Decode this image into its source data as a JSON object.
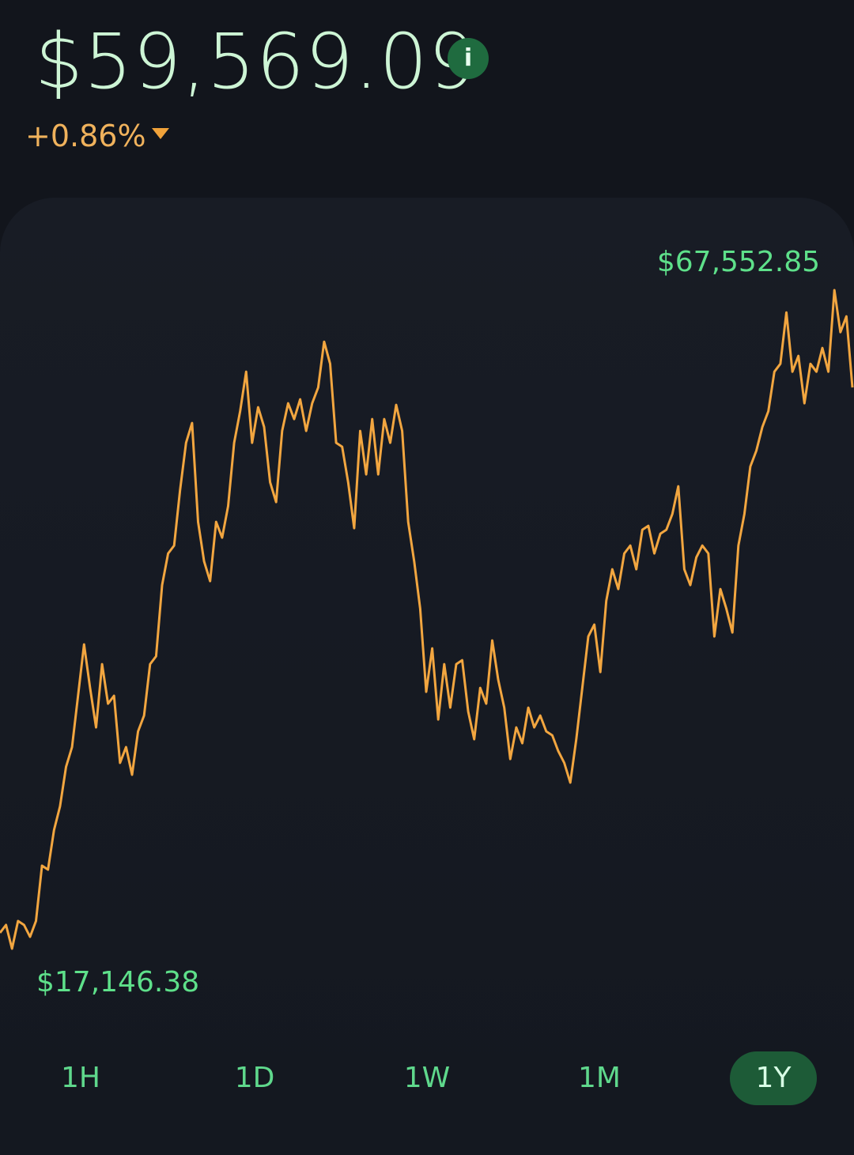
{
  "header": {
    "price": "$59,569.09",
    "change": "+0.86%"
  },
  "chart_data": {
    "type": "line",
    "color": "#f2a640",
    "values": [
      18356,
      18961,
      17146.38,
      19264,
      18961,
      18054,
      19264,
      23499,
      23196,
      26221,
      28036,
      31061,
      32574,
      36506,
      40439,
      37111,
      34086,
      38926,
      35901,
      36506,
      31364,
      32574,
      30456,
      33784,
      34994,
      38926,
      39531,
      44976,
      47396,
      48001,
      52236,
      55866,
      57379,
      49816,
      46791,
      45279,
      49816,
      48606,
      51026,
      55866,
      58286,
      61311,
      55866,
      58589,
      57076,
      52841,
      51329,
      56774,
      58891,
      57681,
      59194,
      56774,
      58891,
      60101,
      63610,
      61916,
      55866,
      55564,
      52841,
      49332,
      56774,
      53446,
      57681,
      53446,
      57681,
      55866,
      58770,
      56774,
      49816,
      46791,
      43161,
      36809,
      40136,
      34691,
      38926,
      35599,
      38926,
      39229,
      35296,
      33179,
      37111,
      35901,
      40741,
      37716,
      35599,
      31666,
      34086,
      32876,
      35599,
      34086,
      34994,
      33784,
      33481,
      32271,
      31364,
      29851,
      33179,
      37111,
      41044,
      41951,
      38321,
      43766,
      46186,
      44674,
      47396,
      48001,
      46186,
      49211,
      49514,
      47396,
      48909,
      49211,
      50421,
      52539,
      46186,
      44976,
      47094,
      48001,
      47396,
      41044,
      44674,
      43161,
      41346,
      48001,
      50421,
      54051,
      55261,
      57076,
      58286,
      61311,
      61916,
      65849,
      61311,
      62521,
      58891,
      61916,
      61311,
      63126,
      61311,
      67552.85,
      64336,
      65546,
      60101
    ],
    "annotations": [
      {
        "value": 67552.85,
        "label": "$67,552.85"
      },
      {
        "value": 17146.38,
        "label": "$17,146.38"
      }
    ]
  },
  "range_buttons": {
    "items": [
      "1H",
      "1D",
      "1W",
      "1M",
      "1Y"
    ],
    "selected": 4
  }
}
